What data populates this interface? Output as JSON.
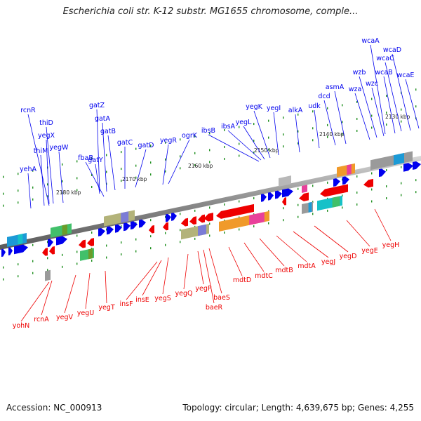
{
  "title": "Escherichia coli str. K-12 substr. MG1655 chromosome, comple...",
  "footer": {
    "accession": "Accession: NC_000913",
    "topology": "Topology: circular; Length: 4,639,675 bp; Genes: 4,255"
  },
  "colors": {
    "forward": "#0000ee",
    "reverse": "#ee0000",
    "backbone": "#808080",
    "tick": "#1f8f1f"
  },
  "kbp_labels": [
    "2130 kbp",
    "2140 kbp",
    "2150 kbp",
    "2160 kbp",
    "2170 kbp",
    "2180 kbp"
  ],
  "forward_genes": [
    "yehA",
    "thiM",
    "yegX",
    "yegW",
    "thiD",
    "rcnR",
    "fbaB",
    "gatY",
    "gatZ",
    "gatA",
    "gatB",
    "gatC",
    "gatD",
    "yegR",
    "ogrK",
    "ibsB",
    "ibsA",
    "yegL",
    "yegK",
    "yegI",
    "alkA",
    "udk",
    "dcd",
    "asmA",
    "wza",
    "wzb",
    "wzc",
    "wcaA",
    "wcaB",
    "wcaC",
    "wcaD",
    "wcaE"
  ],
  "reverse_genes": [
    "yohN",
    "rcnA",
    "yegV",
    "yegU",
    "yegT",
    "insF",
    "insE",
    "yegS",
    "yegQ",
    "yegP",
    "baeR",
    "baeS",
    "mdtD",
    "mdtC",
    "mdtB",
    "mdtA",
    "yegJ",
    "yegD",
    "yegE",
    "yegH"
  ]
}
